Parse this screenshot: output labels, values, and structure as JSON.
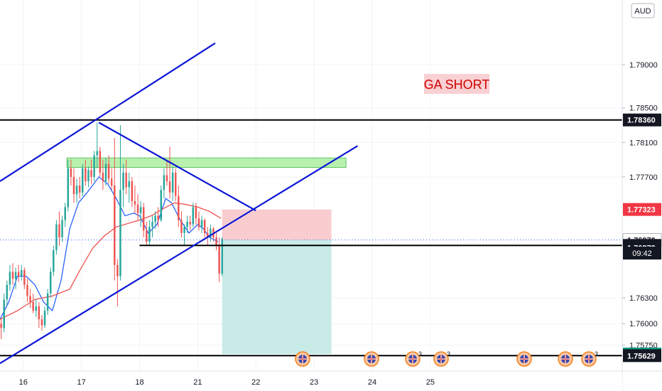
{
  "chart_data": {
    "type": "candlestick",
    "currency": "AUD",
    "annotation": "GA SHORT",
    "clock": "09:42",
    "ylim": [
      1.7545,
      1.7975
    ],
    "xlim": [
      15.6,
      26.3
    ],
    "x_ticks": [
      {
        "x": 16,
        "label": "16"
      },
      {
        "x": 17,
        "label": "17"
      },
      {
        "x": 18,
        "label": "18"
      },
      {
        "x": 21,
        "label": "21"
      },
      {
        "x": 22,
        "label": "22"
      },
      {
        "x": 23,
        "label": "23"
      },
      {
        "x": 24,
        "label": "24"
      },
      {
        "x": 25,
        "label": "25"
      }
    ],
    "x_positions": {
      "16": 16,
      "17": 17,
      "18": 18,
      "21": 19,
      "22": 20,
      "23": 21,
      "24": 22,
      "25": 23
    },
    "y_ticks": [
      {
        "value": 1.79,
        "label": "1.79000"
      },
      {
        "value": 1.785,
        "label": "1.78500"
      },
      {
        "value": 1.781,
        "label": "1.78100"
      },
      {
        "value": 1.777,
        "label": "1.77700"
      },
      {
        "value": 1.763,
        "label": "1.76300"
      },
      {
        "value": 1.76,
        "label": "1.76000"
      },
      {
        "value": 1.7575,
        "label": "1.75750"
      }
    ],
    "price_badges": [
      {
        "value": 1.7836,
        "label": "1.78360",
        "bg": "#131722",
        "fg": "#ffffff"
      },
      {
        "value": 1.77323,
        "label": "1.77323",
        "bg": "#f23645",
        "fg": "#ffffff"
      },
      {
        "value": 1.7697,
        "label": "1.76970",
        "bg": "#ffffff",
        "fg": "#131722",
        "border": "#b2b5be"
      },
      {
        "value": 1.76906,
        "label": "1.76906",
        "bg": "#131722",
        "fg": "#ffffff"
      },
      {
        "value": 1.76879,
        "label": "1.76879",
        "bg": "#131722",
        "fg": "#ffffff"
      },
      {
        "value": 1.75648,
        "label": "1.75648",
        "bg": "#089981",
        "fg": "#ffffff"
      },
      {
        "value": 1.75629,
        "label": "1.75629",
        "bg": "#131722",
        "fg": "#ffffff"
      }
    ],
    "horizontal_lines": [
      {
        "value": 1.7836,
        "color": "#000000"
      },
      {
        "value": 1.75629,
        "color": "#000000"
      },
      {
        "value": 1.76906,
        "color": "#000000",
        "x_from": 18.0
      }
    ],
    "trend_lines": [
      {
        "name": "channel-upper",
        "x1": 15.6,
        "y1": 1.7765,
        "x2": 19.3,
        "y2": 1.7925,
        "color": "#0b16d6"
      },
      {
        "name": "channel-lower",
        "x1": 15.6,
        "y1": 1.7554,
        "x2": 21.75,
        "y2": 1.7806,
        "color": "#0b16d6"
      },
      {
        "name": "descending-line",
        "x1": 17.3,
        "y1": 1.7833,
        "x2": 20.0,
        "y2": 1.7731,
        "color": "#0b16d6"
      }
    ],
    "zones": [
      {
        "name": "supply-zone",
        "x1": 16.75,
        "x2": 21.55,
        "y_top": 1.7792,
        "y_bottom": 1.7781,
        "fill": "#b9f0b0",
        "stroke": "#5ec75e"
      },
      {
        "name": "stop-zone",
        "x1": 19.42,
        "x2": 21.3,
        "y_top": 1.77323,
        "y_bottom": 1.7697,
        "fill": "#f9cdd0"
      },
      {
        "name": "target-zone",
        "x1": 19.42,
        "x2": 21.3,
        "y_top": 1.7697,
        "y_bottom": 1.75648,
        "fill": "#c9ebe8"
      }
    ],
    "moving_averages": [
      {
        "name": "ma-blue",
        "color": "#2962ff",
        "points": [
          [
            15.6,
            1.7605
          ],
          [
            15.75,
            1.7625
          ],
          [
            15.9,
            1.7655
          ],
          [
            16.05,
            1.7655
          ],
          [
            16.2,
            1.7645
          ],
          [
            16.35,
            1.7625
          ],
          [
            16.5,
            1.7615
          ],
          [
            16.65,
            1.765
          ],
          [
            16.8,
            1.771
          ],
          [
            16.95,
            1.774
          ],
          [
            17.1,
            1.7752
          ],
          [
            17.3,
            1.777
          ],
          [
            17.45,
            1.7762
          ],
          [
            17.6,
            1.7745
          ],
          [
            17.75,
            1.7725
          ],
          [
            17.9,
            1.7728
          ],
          [
            18.0,
            1.7725
          ],
          [
            18.15,
            1.7705
          ],
          [
            18.3,
            1.7715
          ],
          [
            18.45,
            1.7745
          ],
          [
            18.55,
            1.774
          ],
          [
            18.7,
            1.772
          ],
          [
            18.85,
            1.7705
          ],
          [
            19.0,
            1.7715
          ],
          [
            19.1,
            1.771
          ],
          [
            19.2,
            1.77
          ],
          [
            19.35,
            1.7695
          ]
        ]
      },
      {
        "name": "ma-red",
        "color": "#ef5350",
        "points": [
          [
            15.6,
            1.7605
          ],
          [
            15.9,
            1.7615
          ],
          [
            16.2,
            1.7628
          ],
          [
            16.5,
            1.7632
          ],
          [
            16.8,
            1.764
          ],
          [
            17.0,
            1.7665
          ],
          [
            17.2,
            1.7688
          ],
          [
            17.4,
            1.7702
          ],
          [
            17.6,
            1.7712
          ],
          [
            17.8,
            1.7716
          ],
          [
            18.0,
            1.772
          ],
          [
            18.2,
            1.7725
          ],
          [
            18.4,
            1.7733
          ],
          [
            18.6,
            1.774
          ],
          [
            18.8,
            1.7738
          ],
          [
            19.0,
            1.7735
          ],
          [
            19.2,
            1.773
          ],
          [
            19.4,
            1.7722
          ]
        ]
      }
    ],
    "candles": [
      [
        15.62,
        1.76,
        1.7605,
        1.7582,
        1.7595
      ],
      [
        15.67,
        1.7595,
        1.7635,
        1.759,
        1.7628
      ],
      [
        15.72,
        1.7628,
        1.765,
        1.762,
        1.7645
      ],
      [
        15.77,
        1.7645,
        1.7668,
        1.7638,
        1.766
      ],
      [
        15.82,
        1.766,
        1.767,
        1.7645,
        1.7652
      ],
      [
        15.87,
        1.7652,
        1.7665,
        1.764,
        1.766
      ],
      [
        15.92,
        1.766,
        1.7668,
        1.7648,
        1.7655
      ],
      [
        15.97,
        1.7655,
        1.7668,
        1.765,
        1.7662
      ],
      [
        16.02,
        1.7662,
        1.7665,
        1.764,
        1.7645
      ],
      [
        16.07,
        1.7645,
        1.7652,
        1.7625,
        1.7632
      ],
      [
        16.12,
        1.7632,
        1.764,
        1.7618,
        1.7625
      ],
      [
        16.17,
        1.7625,
        1.7635,
        1.7612,
        1.7615
      ],
      [
        16.22,
        1.7615,
        1.7628,
        1.7608,
        1.762
      ],
      [
        16.27,
        1.762,
        1.7625,
        1.7595,
        1.7605
      ],
      [
        16.32,
        1.7605,
        1.761,
        1.7592,
        1.7598
      ],
      [
        16.37,
        1.7598,
        1.762,
        1.7595,
        1.7615
      ],
      [
        16.42,
        1.7615,
        1.764,
        1.761,
        1.7635
      ],
      [
        16.47,
        1.7635,
        1.7665,
        1.763,
        1.766
      ],
      [
        16.52,
        1.766,
        1.769,
        1.7655,
        1.7685
      ],
      [
        16.57,
        1.7685,
        1.772,
        1.768,
        1.7715
      ],
      [
        16.62,
        1.7715,
        1.773,
        1.769,
        1.77
      ],
      [
        16.67,
        1.77,
        1.7725,
        1.7695,
        1.772
      ],
      [
        16.72,
        1.772,
        1.774,
        1.7712,
        1.7735
      ],
      [
        16.77,
        1.7735,
        1.779,
        1.773,
        1.778
      ],
      [
        16.82,
        1.778,
        1.779,
        1.776,
        1.777
      ],
      [
        16.87,
        1.777,
        1.778,
        1.774,
        1.775
      ],
      [
        16.92,
        1.775,
        1.7768,
        1.774,
        1.776
      ],
      [
        16.97,
        1.776,
        1.777,
        1.7745,
        1.7752
      ],
      [
        17.02,
        1.7752,
        1.7785,
        1.7748,
        1.778
      ],
      [
        17.07,
        1.778,
        1.779,
        1.776,
        1.7765
      ],
      [
        17.12,
        1.7765,
        1.7782,
        1.7758,
        1.7778
      ],
      [
        17.17,
        1.7778,
        1.779,
        1.7762,
        1.777
      ],
      [
        17.22,
        1.777,
        1.78,
        1.7765,
        1.7795
      ],
      [
        17.27,
        1.7795,
        1.7833,
        1.778,
        1.78
      ],
      [
        17.32,
        1.78,
        1.7805,
        1.777,
        1.7775
      ],
      [
        17.37,
        1.7775,
        1.779,
        1.7755,
        1.7765
      ],
      [
        17.42,
        1.7765,
        1.7792,
        1.776,
        1.7785
      ],
      [
        17.47,
        1.7785,
        1.7795,
        1.7762,
        1.7768
      ],
      [
        17.52,
        1.7768,
        1.778,
        1.7755,
        1.776
      ],
      [
        17.57,
        1.776,
        1.7815,
        1.765,
        1.7668
      ],
      [
        17.62,
        1.7668,
        1.7675,
        1.762,
        1.7655
      ],
      [
        17.67,
        1.7655,
        1.783,
        1.765,
        1.7755
      ],
      [
        17.72,
        1.7755,
        1.7785,
        1.7735,
        1.7775
      ],
      [
        17.77,
        1.7775,
        1.779,
        1.775,
        1.7758
      ],
      [
        17.82,
        1.7758,
        1.7775,
        1.774,
        1.7765
      ],
      [
        17.87,
        1.7765,
        1.777,
        1.7735,
        1.7742
      ],
      [
        17.92,
        1.7742,
        1.776,
        1.7728,
        1.7738
      ],
      [
        17.97,
        1.7738,
        1.775,
        1.772,
        1.7728
      ],
      [
        18.02,
        1.7728,
        1.7742,
        1.7712,
        1.7735
      ],
      [
        18.07,
        1.7735,
        1.774,
        1.77,
        1.7708
      ],
      [
        18.12,
        1.7708,
        1.7718,
        1.769,
        1.7695
      ],
      [
        18.17,
        1.7695,
        1.772,
        1.769,
        1.7712
      ],
      [
        18.22,
        1.7712,
        1.7725,
        1.77,
        1.7718
      ],
      [
        18.27,
        1.7718,
        1.773,
        1.771,
        1.7725
      ],
      [
        18.32,
        1.7725,
        1.7735,
        1.7712,
        1.772
      ],
      [
        18.37,
        1.772,
        1.776,
        1.7718,
        1.7755
      ],
      [
        18.42,
        1.7755,
        1.778,
        1.7745,
        1.7772
      ],
      [
        18.47,
        1.7772,
        1.779,
        1.776,
        1.7765
      ],
      [
        18.52,
        1.7765,
        1.7805,
        1.7745,
        1.7752
      ],
      [
        18.57,
        1.7752,
        1.7782,
        1.7742,
        1.7775
      ],
      [
        18.62,
        1.7775,
        1.778,
        1.7742,
        1.7748
      ],
      [
        18.67,
        1.7748,
        1.776,
        1.7712,
        1.772
      ],
      [
        18.72,
        1.772,
        1.773,
        1.77,
        1.7705
      ],
      [
        18.77,
        1.7705,
        1.7715,
        1.769,
        1.7712
      ],
      [
        18.82,
        1.7712,
        1.7725,
        1.7705,
        1.7718
      ],
      [
        18.87,
        1.7718,
        1.7725,
        1.7708,
        1.7715
      ],
      [
        18.92,
        1.7715,
        1.774,
        1.7712,
        1.7735
      ],
      [
        18.97,
        1.7735,
        1.774,
        1.7715,
        1.7722
      ],
      [
        19.02,
        1.7722,
        1.773,
        1.7708,
        1.7712
      ],
      [
        19.07,
        1.7712,
        1.7725,
        1.7705,
        1.772
      ],
      [
        19.12,
        1.772,
        1.7722,
        1.77,
        1.7705
      ],
      [
        19.17,
        1.7705,
        1.7712,
        1.769,
        1.77
      ],
      [
        19.22,
        1.77,
        1.7715,
        1.7695,
        1.771
      ],
      [
        19.27,
        1.771,
        1.7712,
        1.7695,
        1.77
      ],
      [
        19.32,
        1.77,
        1.7705,
        1.7685,
        1.769
      ],
      [
        19.37,
        1.769,
        1.77,
        1.7648,
        1.7658
      ],
      [
        19.42,
        1.7658,
        1.77,
        1.7655,
        1.7698
      ]
    ]
  }
}
